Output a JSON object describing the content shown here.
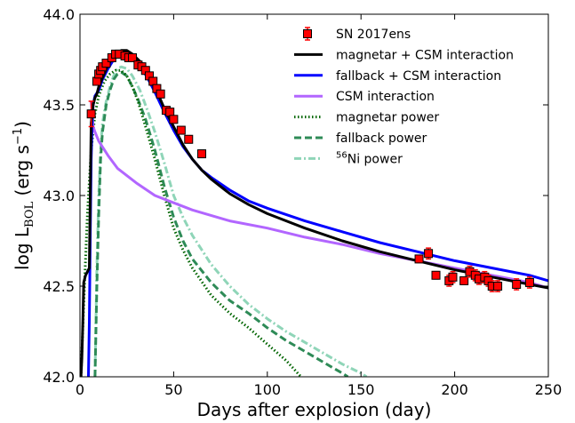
{
  "chart_data": {
    "type": "line",
    "title": "",
    "xlabel": "Days after explosion (day)",
    "ylabel": {
      "main": "log L",
      "subscript": "BOL",
      "unit_open": " (erg s",
      "unit_exp": "−1",
      "unit_close": ")"
    },
    "xlim": [
      0,
      250
    ],
    "ylim": [
      42.0,
      44.0
    ],
    "xticks": [
      0,
      50,
      100,
      150,
      200,
      250
    ],
    "xtick_labels": [
      "0",
      "50",
      "100",
      "150",
      "200",
      "250"
    ],
    "yticks": [
      42.0,
      42.5,
      43.0,
      43.5,
      44.0
    ],
    "ytick_labels": [
      "42.0",
      "42.5",
      "43.0",
      "43.5",
      "44.0"
    ],
    "legend_position": "top-right",
    "grid": false,
    "observations": {
      "name": "SN 2017ens",
      "color": "#ff0000",
      "marker": "square",
      "points": [
        {
          "x": 6,
          "y": 43.45,
          "err": 0.07
        },
        {
          "x": 9,
          "y": 43.63,
          "err": 0.02
        },
        {
          "x": 10,
          "y": 43.67,
          "err": 0.02
        },
        {
          "x": 11,
          "y": 43.69,
          "err": 0.02
        },
        {
          "x": 12,
          "y": 43.71,
          "err": 0.02
        },
        {
          "x": 14,
          "y": 43.73,
          "err": 0.02
        },
        {
          "x": 17,
          "y": 43.76,
          "err": 0.02
        },
        {
          "x": 19,
          "y": 43.78,
          "err": 0.02
        },
        {
          "x": 21,
          "y": 43.78,
          "err": 0.02
        },
        {
          "x": 24,
          "y": 43.77,
          "err": 0.02
        },
        {
          "x": 26,
          "y": 43.76,
          "err": 0.02
        },
        {
          "x": 28,
          "y": 43.76,
          "err": 0.02
        },
        {
          "x": 31,
          "y": 43.72,
          "err": 0.02
        },
        {
          "x": 33,
          "y": 43.71,
          "err": 0.02
        },
        {
          "x": 35,
          "y": 43.69,
          "err": 0.02
        },
        {
          "x": 37,
          "y": 43.66,
          "err": 0.02
        },
        {
          "x": 39,
          "y": 43.63,
          "err": 0.02
        },
        {
          "x": 41,
          "y": 43.59,
          "err": 0.02
        },
        {
          "x": 43,
          "y": 43.56,
          "err": 0.02
        },
        {
          "x": 46,
          "y": 43.47,
          "err": 0.02
        },
        {
          "x": 48,
          "y": 43.46,
          "err": 0.02
        },
        {
          "x": 50,
          "y": 43.42,
          "err": 0.02
        },
        {
          "x": 54,
          "y": 43.36,
          "err": 0.02
        },
        {
          "x": 58,
          "y": 43.31,
          "err": 0.02
        },
        {
          "x": 65,
          "y": 43.23,
          "err": 0.02
        },
        {
          "x": 181,
          "y": 42.65,
          "err": 0.02
        },
        {
          "x": 186,
          "y": 42.68,
          "err": 0.03
        },
        {
          "x": 190,
          "y": 42.56,
          "err": 0.02
        },
        {
          "x": 197,
          "y": 42.53,
          "err": 0.03
        },
        {
          "x": 199,
          "y": 42.55,
          "err": 0.03
        },
        {
          "x": 205,
          "y": 42.53,
          "err": 0.02
        },
        {
          "x": 208,
          "y": 42.58,
          "err": 0.03
        },
        {
          "x": 211,
          "y": 42.56,
          "err": 0.03
        },
        {
          "x": 213,
          "y": 42.54,
          "err": 0.03
        },
        {
          "x": 216,
          "y": 42.55,
          "err": 0.03
        },
        {
          "x": 218,
          "y": 42.53,
          "err": 0.03
        },
        {
          "x": 220,
          "y": 42.5,
          "err": 0.03
        },
        {
          "x": 223,
          "y": 42.5,
          "err": 0.03
        },
        {
          "x": 233,
          "y": 42.51,
          "err": 0.03
        },
        {
          "x": 240,
          "y": 42.52,
          "err": 0.03
        }
      ]
    },
    "series": [
      {
        "name": "magnetar + CSM interaction",
        "color": "#000000",
        "style": "solid",
        "points": [
          [
            0.5,
            42.0
          ],
          [
            1,
            42.1
          ],
          [
            1.5,
            42.3
          ],
          [
            2,
            42.52
          ],
          [
            3,
            42.56
          ],
          [
            4,
            42.58
          ],
          [
            5,
            42.6
          ],
          [
            6,
            43.4
          ],
          [
            7,
            43.5
          ],
          [
            8,
            43.54
          ],
          [
            9,
            43.56
          ],
          [
            10,
            43.6
          ],
          [
            12,
            43.65
          ],
          [
            15,
            43.72
          ],
          [
            18,
            43.77
          ],
          [
            20,
            43.79
          ],
          [
            22,
            43.8
          ],
          [
            25,
            43.8
          ],
          [
            28,
            43.78
          ],
          [
            30,
            43.76
          ],
          [
            33,
            43.73
          ],
          [
            36,
            43.68
          ],
          [
            40,
            43.6
          ],
          [
            45,
            43.48
          ],
          [
            50,
            43.38
          ],
          [
            55,
            43.28
          ],
          [
            60,
            43.2
          ],
          [
            65,
            43.14
          ],
          [
            70,
            43.09
          ],
          [
            80,
            43.01
          ],
          [
            90,
            42.95
          ],
          [
            100,
            42.9
          ],
          [
            120,
            42.82
          ],
          [
            140,
            42.75
          ],
          [
            160,
            42.69
          ],
          [
            180,
            42.64
          ],
          [
            200,
            42.59
          ],
          [
            220,
            42.55
          ],
          [
            240,
            42.51
          ],
          [
            250,
            42.49
          ]
        ]
      },
      {
        "name": "fallback + CSM interaction",
        "color": "#0000ff",
        "style": "solid",
        "points": [
          [
            4.5,
            42.0
          ],
          [
            5,
            42.3
          ],
          [
            5.5,
            42.8
          ],
          [
            6,
            43.2
          ],
          [
            6.5,
            43.4
          ],
          [
            7,
            43.5
          ],
          [
            8,
            43.55
          ],
          [
            10,
            43.58
          ],
          [
            12,
            43.64
          ],
          [
            15,
            43.7
          ],
          [
            18,
            43.75
          ],
          [
            20,
            43.77
          ],
          [
            22,
            43.78
          ],
          [
            25,
            43.78
          ],
          [
            28,
            43.76
          ],
          [
            30,
            43.74
          ],
          [
            33,
            43.7
          ],
          [
            36,
            43.65
          ],
          [
            40,
            43.57
          ],
          [
            45,
            43.46
          ],
          [
            50,
            43.36
          ],
          [
            55,
            43.27
          ],
          [
            60,
            43.2
          ],
          [
            65,
            43.14
          ],
          [
            70,
            43.1
          ],
          [
            80,
            43.03
          ],
          [
            90,
            42.97
          ],
          [
            100,
            42.93
          ],
          [
            120,
            42.86
          ],
          [
            140,
            42.8
          ],
          [
            160,
            42.74
          ],
          [
            180,
            42.69
          ],
          [
            200,
            42.64
          ],
          [
            220,
            42.6
          ],
          [
            240,
            42.56
          ],
          [
            250,
            42.53
          ]
        ]
      },
      {
        "name": "CSM interaction",
        "color": "#b266ff",
        "style": "solid",
        "points": [
          [
            6,
            43.52
          ],
          [
            7,
            43.38
          ],
          [
            8,
            43.35
          ],
          [
            10,
            43.3
          ],
          [
            15,
            43.22
          ],
          [
            20,
            43.15
          ],
          [
            30,
            43.07
          ],
          [
            40,
            43.0
          ],
          [
            50,
            42.96
          ],
          [
            60,
            42.92
          ],
          [
            80,
            42.86
          ],
          [
            100,
            42.82
          ],
          [
            120,
            42.77
          ],
          [
            140,
            42.73
          ],
          [
            160,
            42.68
          ],
          [
            180,
            42.64
          ],
          [
            200,
            42.6
          ],
          [
            220,
            42.56
          ],
          [
            240,
            42.52
          ],
          [
            250,
            42.49
          ]
        ]
      },
      {
        "name": "magnetar power",
        "color": "#006400",
        "style": "dotted",
        "points": [
          [
            0.5,
            42.0
          ],
          [
            2,
            42.4
          ],
          [
            4,
            42.9
          ],
          [
            6,
            43.25
          ],
          [
            8,
            43.45
          ],
          [
            10,
            43.55
          ],
          [
            13,
            43.63
          ],
          [
            16,
            43.67
          ],
          [
            19,
            43.69
          ],
          [
            22,
            43.69
          ],
          [
            25,
            43.66
          ],
          [
            28,
            43.6
          ],
          [
            31,
            43.52
          ],
          [
            35,
            43.38
          ],
          [
            40,
            43.2
          ],
          [
            45,
            43.0
          ],
          [
            50,
            42.82
          ],
          [
            55,
            42.7
          ],
          [
            60,
            42.6
          ],
          [
            70,
            42.45
          ],
          [
            80,
            42.35
          ],
          [
            90,
            42.27
          ],
          [
            100,
            42.18
          ],
          [
            110,
            42.09
          ],
          [
            118,
            42.0
          ]
        ]
      },
      {
        "name": "fallback power",
        "color": "#2e8b57",
        "style": "dashed",
        "points": [
          [
            8,
            42.0
          ],
          [
            9,
            42.5
          ],
          [
            10,
            42.9
          ],
          [
            11,
            43.2
          ],
          [
            12,
            43.35
          ],
          [
            14,
            43.5
          ],
          [
            16,
            43.58
          ],
          [
            18,
            43.64
          ],
          [
            20,
            43.67
          ],
          [
            22,
            43.68
          ],
          [
            25,
            43.66
          ],
          [
            28,
            43.6
          ],
          [
            31,
            43.53
          ],
          [
            35,
            43.42
          ],
          [
            40,
            43.25
          ],
          [
            45,
            43.05
          ],
          [
            50,
            42.88
          ],
          [
            55,
            42.75
          ],
          [
            60,
            42.65
          ],
          [
            70,
            42.52
          ],
          [
            80,
            42.42
          ],
          [
            90,
            42.35
          ],
          [
            100,
            42.27
          ],
          [
            110,
            42.2
          ],
          [
            120,
            42.14
          ],
          [
            130,
            42.08
          ],
          [
            140,
            42.02
          ],
          [
            143,
            42.0
          ]
        ]
      },
      {
        "name": "⁵⁶Ni power",
        "name_sup": "56",
        "name_text": "Ni power",
        "color": "#8fd5b8",
        "style": "dashdot",
        "points": [
          [
            8,
            42.0
          ],
          [
            9,
            42.6
          ],
          [
            10,
            43.0
          ],
          [
            11,
            43.25
          ],
          [
            12,
            43.4
          ],
          [
            14,
            43.52
          ],
          [
            16,
            43.6
          ],
          [
            18,
            43.66
          ],
          [
            20,
            43.7
          ],
          [
            22,
            43.71
          ],
          [
            25,
            43.7
          ],
          [
            28,
            43.66
          ],
          [
            32,
            43.58
          ],
          [
            36,
            43.47
          ],
          [
            40,
            43.35
          ],
          [
            45,
            43.18
          ],
          [
            50,
            43.0
          ],
          [
            55,
            42.88
          ],
          [
            60,
            42.78
          ],
          [
            70,
            42.62
          ],
          [
            80,
            42.5
          ],
          [
            90,
            42.4
          ],
          [
            100,
            42.32
          ],
          [
            110,
            42.25
          ],
          [
            120,
            42.19
          ],
          [
            130,
            42.13
          ],
          [
            140,
            42.07
          ],
          [
            150,
            42.02
          ],
          [
            153,
            42.0
          ]
        ]
      }
    ]
  }
}
